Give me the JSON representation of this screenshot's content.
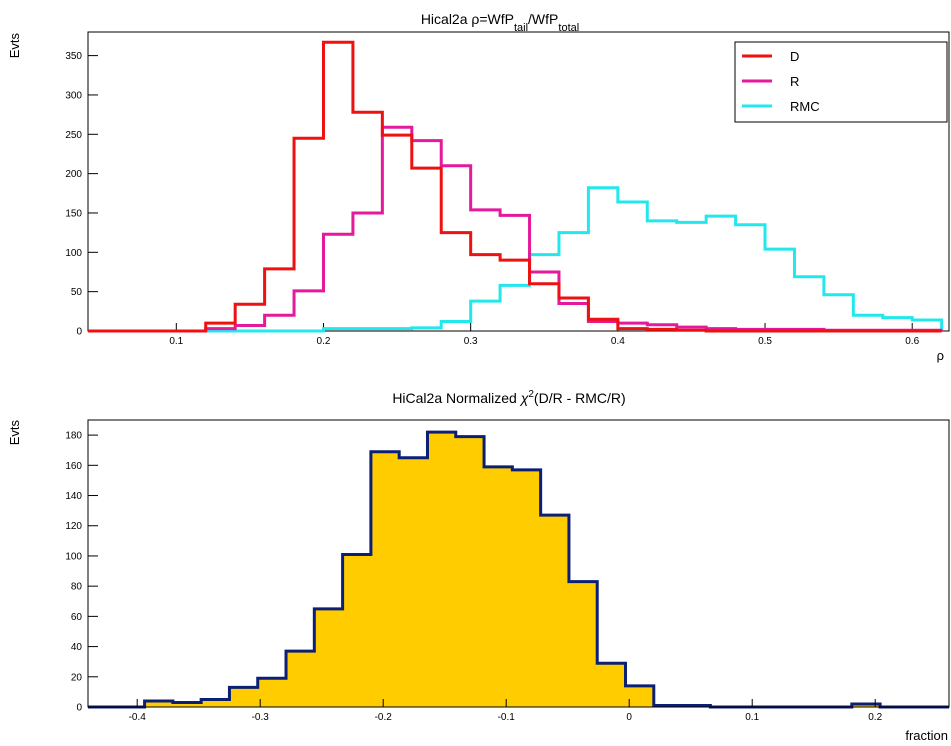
{
  "chart_data": [
    {
      "type": "histogram-step",
      "title_main": "Hical2a ρ=WfP",
      "title_sub1": "tail",
      "title_mid": "/WfP",
      "title_sub2": "total",
      "ylabel": "Evts",
      "xlabel": "ρ",
      "xlim": [
        0.04,
        0.625
      ],
      "ylim": [
        0,
        380
      ],
      "xticks": [
        0.1,
        0.2,
        0.3,
        0.4,
        0.5,
        0.6
      ],
      "xtick_labels": [
        "0.1",
        "0.2",
        "0.3",
        "0.4",
        "0.5",
        "0.6"
      ],
      "yticks": [
        0,
        50,
        100,
        150,
        200,
        250,
        300,
        350
      ],
      "ytick_labels": [
        "0",
        "50",
        "100",
        "150",
        "200",
        "250",
        "300",
        "350"
      ],
      "bin_edges": [
        0.04,
        0.06,
        0.08,
        0.1,
        0.12,
        0.14,
        0.16,
        0.18,
        0.2,
        0.22,
        0.24,
        0.26,
        0.28,
        0.3,
        0.32,
        0.34,
        0.36,
        0.38,
        0.4,
        0.42,
        0.44,
        0.46,
        0.48,
        0.5,
        0.52,
        0.54,
        0.56,
        0.58,
        0.6,
        0.62
      ],
      "legend_position": "top-right",
      "series": [
        {
          "name": "D",
          "color": "#ee1111",
          "values": [
            0,
            0,
            0,
            0,
            10,
            34,
            79,
            245,
            367,
            278,
            249,
            207,
            125,
            97,
            90,
            60,
            42,
            15,
            3,
            2,
            1,
            0,
            0,
            0,
            0,
            0,
            0,
            0,
            0,
            0
          ]
        },
        {
          "name": "R",
          "color": "#e4199b",
          "values": [
            0,
            0,
            0,
            0,
            3,
            7,
            20,
            51,
            123,
            150,
            259,
            242,
            210,
            154,
            147,
            75,
            35,
            12,
            10,
            8,
            5,
            3,
            2,
            2,
            2,
            1,
            1,
            1,
            1,
            2
          ]
        },
        {
          "name": "RMC",
          "color": "#22e8ee",
          "values": [
            0,
            0,
            0,
            0,
            0,
            0,
            0,
            0,
            3,
            3,
            3,
            4,
            12,
            38,
            58,
            97,
            125,
            182,
            164,
            140,
            138,
            146,
            135,
            104,
            69,
            46,
            20,
            17,
            14,
            2
          ]
        }
      ]
    },
    {
      "type": "histogram-filled",
      "title_main": "HiCal2a Normalized ",
      "title_chi": "χ",
      "title_sup": "2",
      "title_rest": "(D/R - RMC/R)",
      "ylabel": "Evts",
      "xlabel": "fraction",
      "xlim": [
        -0.44,
        0.26
      ],
      "ylim": [
        0,
        190
      ],
      "xticks": [
        -0.4,
        -0.3,
        -0.2,
        -0.1,
        0,
        0.1,
        0.2
      ],
      "xtick_labels": [
        "-0.4",
        "-0.3",
        "-0.2",
        "-0.1",
        "0",
        "0.1",
        "0.2"
      ],
      "yticks": [
        0,
        20,
        40,
        60,
        80,
        100,
        120,
        140,
        160,
        180
      ],
      "ytick_labels": [
        "0",
        "20",
        "40",
        "60",
        "80",
        "100",
        "120",
        "140",
        "160",
        "180"
      ],
      "bin_edges": [
        -0.44,
        -0.417,
        -0.394,
        -0.371,
        -0.348,
        -0.325,
        -0.302,
        -0.279,
        -0.256,
        -0.233,
        -0.21,
        -0.187,
        -0.164,
        -0.141,
        -0.118,
        -0.095,
        -0.072,
        -0.049,
        -0.026,
        -0.003,
        0.02,
        0.043,
        0.066,
        0.089,
        0.112,
        0.135,
        0.158,
        0.181,
        0.204,
        0.227,
        0.26
      ],
      "values": [
        0,
        0,
        4,
        3,
        5,
        13,
        19,
        37,
        65,
        101,
        169,
        165,
        182,
        179,
        159,
        157,
        127,
        83,
        29,
        14,
        1,
        1,
        0,
        0,
        0,
        0,
        0,
        2,
        0,
        0
      ],
      "fill_color": "#ffcc00",
      "line_color": "#0b1f75"
    }
  ]
}
